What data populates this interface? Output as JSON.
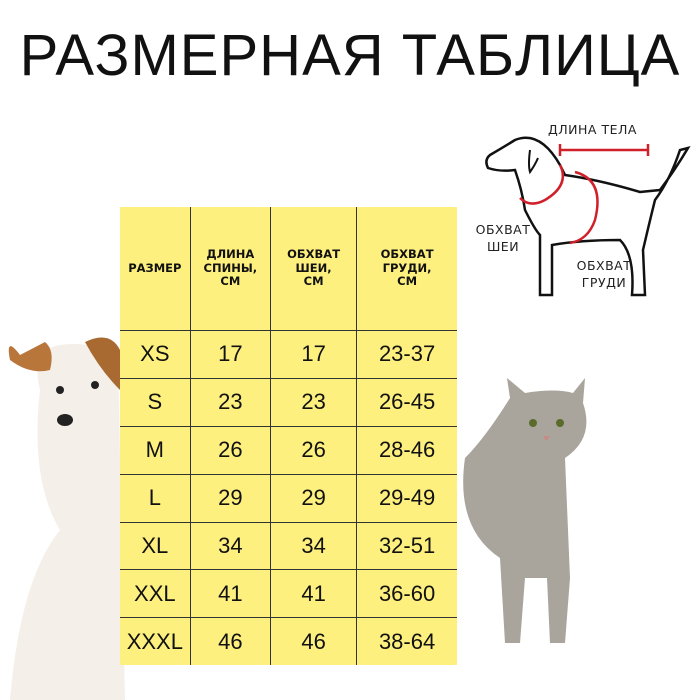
{
  "title": "РАЗМЕРНАЯ ТАБЛИЦА",
  "table": {
    "headers": [
      "РАЗМЕР",
      "ДЛИНА СПИНЫ, СМ",
      "ОБХВАТ ШЕИ, СМ",
      "ОБХВАТ ГРУДИ, СМ"
    ],
    "rows": [
      [
        "XS",
        "17",
        "17",
        "23-37"
      ],
      [
        "S",
        "23",
        "23",
        "26-45"
      ],
      [
        "M",
        "26",
        "26",
        "28-46"
      ],
      [
        "L",
        "29",
        "29",
        "29-49"
      ],
      [
        "XL",
        "34",
        "34",
        "32-51"
      ],
      [
        "XXL",
        "41",
        "41",
        "36-60"
      ],
      [
        "XXXL",
        "46",
        "46",
        "38-64"
      ]
    ]
  },
  "diagram": {
    "body_length": "ДЛИНА ТЕЛА",
    "neck": "ОБХВАТ ШЕИ",
    "chest": "ОБХВАТ ГРУДИ"
  },
  "colors": {
    "table_bg": "#fdf07f",
    "measure_line": "#d0202a"
  }
}
